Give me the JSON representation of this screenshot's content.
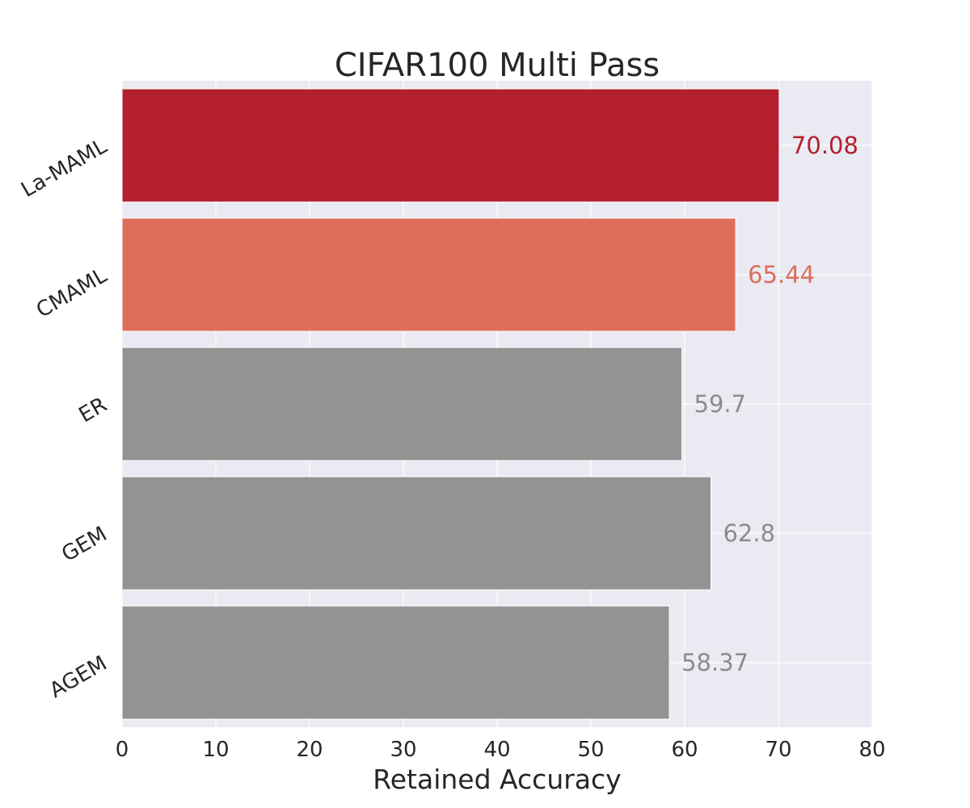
{
  "chart_data": {
    "type": "bar",
    "orientation": "horizontal",
    "title": "CIFAR100 Multi Pass",
    "xlabel": "Retained Accuracy",
    "ylabel": "",
    "categories": [
      "La-MAML",
      "CMAML",
      "ER",
      "GEM",
      "AGEM"
    ],
    "values": [
      70.08,
      65.44,
      59.7,
      62.8,
      58.37
    ],
    "value_labels": [
      "70.08",
      "65.44",
      "59.7",
      "62.8",
      "58.37"
    ],
    "bar_colors": [
      "#b41f2e",
      "#dd6e59",
      "#939393",
      "#939393",
      "#939393"
    ],
    "xlim": [
      0,
      80
    ],
    "xticks": [
      0,
      10,
      20,
      30,
      40,
      50,
      60,
      70,
      80
    ],
    "xtick_labels": [
      "0",
      "10",
      "20",
      "30",
      "40",
      "50",
      "60",
      "70",
      "80"
    ],
    "grid": true,
    "legend": "none",
    "background_color": "#eaeaf2"
  }
}
